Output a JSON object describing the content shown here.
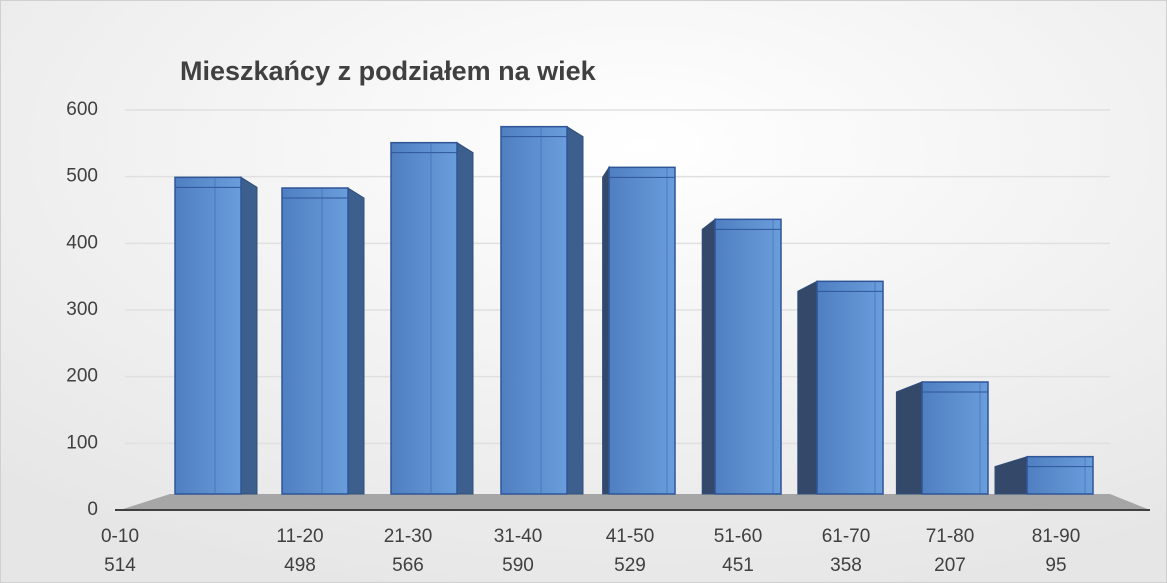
{
  "chart_data": {
    "type": "bar",
    "title": "Mieszkańcy z podziałem na wiek",
    "categories": [
      "0-10",
      "11-20",
      "21-30",
      "31-40",
      "41-50",
      "51-60",
      "61-70",
      "71-80",
      "81-90"
    ],
    "values": [
      514,
      498,
      566,
      590,
      529,
      451,
      358,
      207,
      95
    ],
    "color": "#5b8fd0",
    "ylim": [
      0,
      600
    ],
    "yticks": [
      0,
      100,
      200,
      300,
      400,
      500,
      600
    ],
    "grid": true
  }
}
